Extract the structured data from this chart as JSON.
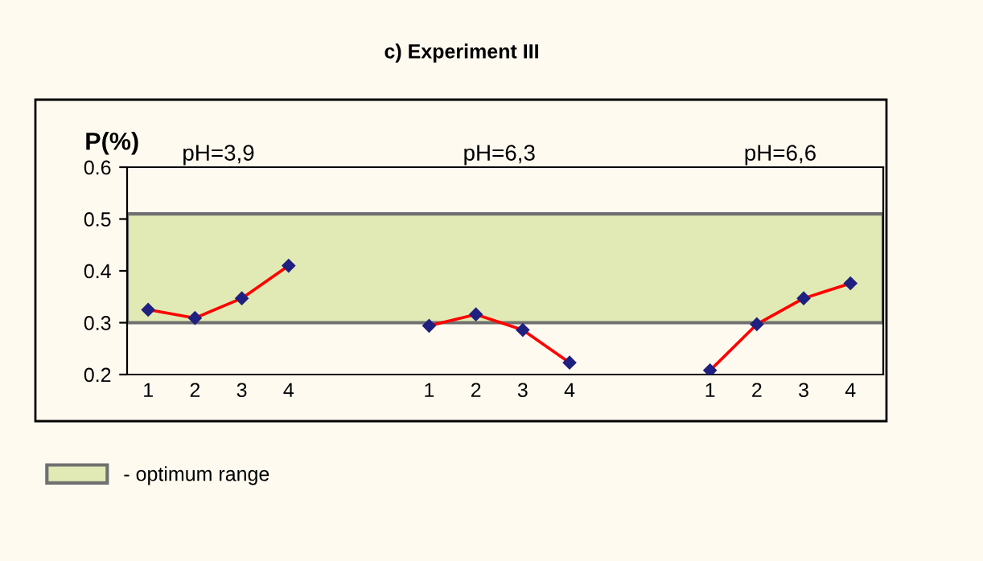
{
  "chart_data": {
    "type": "line",
    "title": "c) Experiment III",
    "ylabel": "P(%)",
    "categories": [
      "1",
      "2",
      "3",
      "4",
      null,
      null,
      "1",
      "2",
      "3",
      "4",
      null,
      null,
      "1",
      "2",
      "3",
      "4"
    ],
    "series": [
      {
        "color": "#ff0000",
        "values": [
          0.325,
          0.309,
          0.347,
          0.41,
          null,
          null,
          null,
          null,
          null,
          null,
          null,
          null,
          null,
          null,
          null,
          null
        ]
      },
      {
        "color": "#ff0000",
        "values": [
          null,
          null,
          null,
          null,
          null,
          null,
          0.294,
          0.316,
          0.286,
          0.223,
          null,
          null,
          null,
          null,
          null,
          null
        ]
      },
      {
        "color": "#ff0000",
        "values": [
          null,
          null,
          null,
          null,
          null,
          null,
          null,
          null,
          null,
          null,
          null,
          null,
          0.208,
          0.297,
          0.347,
          0.376
        ]
      }
    ],
    "annotations": [
      "pH=3,9",
      "pH=6,3",
      "pH=6,6"
    ],
    "bands": [
      {
        "axis": "y",
        "from": 0.3,
        "to": 0.51,
        "label": "- optimum range",
        "color": "#e1eab4"
      }
    ],
    "ylim": [
      0.2,
      0.6
    ],
    "yticks": [
      0.2,
      0.3,
      0.4,
      0.5,
      0.6
    ],
    "marker": "diamond",
    "line_style": "solid",
    "grid": false,
    "legend": "bottom left"
  }
}
